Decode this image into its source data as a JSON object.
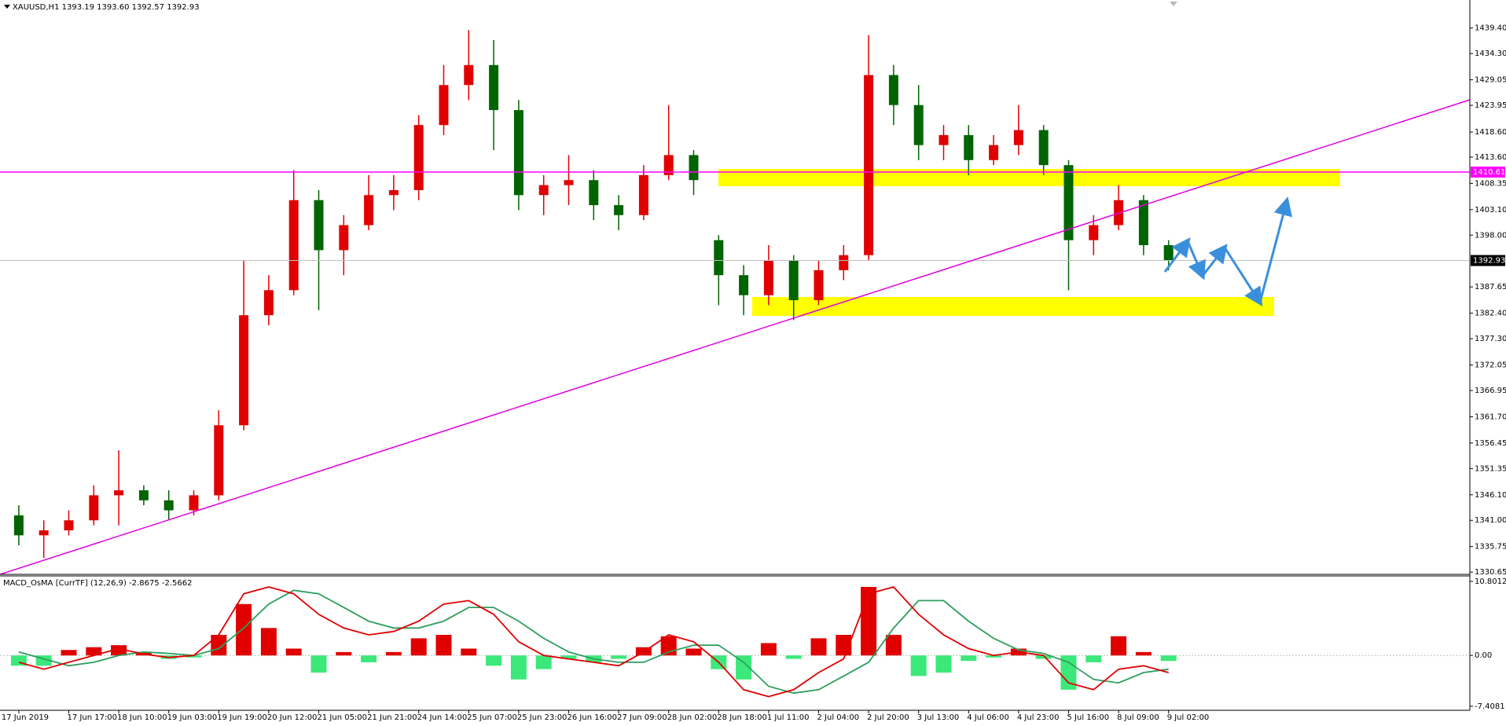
{
  "chart_data": [
    {
      "type": "candlestick",
      "title": "XAUUSD,H1  1393.19 1393.60 1392.57 1392.93",
      "categories": [
        "17 Jun 2019",
        null,
        "17 Jun 17:00",
        null,
        "18 Jun 10:00",
        null,
        "19 Jun 03:00",
        null,
        "19 Jun 19:00",
        null,
        "20 Jun 12:00",
        null,
        "21 Jun 05:00",
        null,
        "21 Jun 21:00",
        null,
        "24 Jun 14:00",
        null,
        "25 Jun 07:00",
        null,
        "25 Jun 23:00",
        null,
        "26 Jun 16:00",
        null,
        "27 Jun 09:00",
        null,
        "28 Jun 02:00",
        null,
        "28 Jun 18:00",
        null,
        "1 Jul 11:00",
        null,
        "2 Jul 04:00",
        null,
        "2 Jul 20:00",
        null,
        "3 Jul 13:00",
        null,
        "4 Jul 06:00",
        null,
        "4 Jul 23:00",
        null,
        "5 Jul 16:00",
        null,
        "8 Jul 09:00",
        null,
        "9 Jul 02:00"
      ],
      "open": [
        1342,
        1338,
        1339,
        1341,
        1346,
        1347,
        1345,
        1343,
        1346,
        1360,
        1382,
        1387,
        1405,
        1395,
        1400,
        1406,
        1407,
        1420,
        1428,
        1432,
        1423,
        1406,
        1408,
        1409,
        1404,
        1402,
        1410,
        1414,
        1397,
        1390,
        1386,
        1393,
        1385,
        1391,
        1394,
        1430,
        1424,
        1416,
        1418,
        1413,
        1416,
        1419,
        1412,
        1397,
        1400,
        1405,
        1396
      ],
      "high": [
        1344,
        1341,
        1343,
        1348,
        1355,
        1348,
        1347,
        1347,
        1363,
        1393,
        1390,
        1411,
        1407,
        1402,
        1410,
        1410,
        1422,
        1432,
        1439,
        1437,
        1425,
        1410,
        1414,
        1411,
        1406,
        1412,
        1424,
        1415,
        1398,
        1392,
        1396,
        1394,
        1393,
        1396,
        1438,
        1432,
        1428,
        1420,
        1420,
        1418,
        1424,
        1420,
        1413,
        1402,
        1408,
        1406,
        1397
      ],
      "low": [
        1336,
        1333.5,
        1338,
        1340,
        1340,
        1344,
        1341,
        1342,
        1345,
        1359,
        1380,
        1386,
        1383,
        1390,
        1399,
        1403,
        1405,
        1418,
        1425,
        1415,
        1403,
        1402,
        1404,
        1401,
        1399,
        1401,
        1409,
        1406,
        1384,
        1382,
        1384,
        1381,
        1384,
        1389,
        1393,
        1420,
        1413,
        1413,
        1410,
        1412,
        1414,
        1410,
        1387,
        1394,
        1399,
        1394,
        1391
      ],
      "close": [
        1338,
        1339,
        1341,
        1346,
        1347,
        1345,
        1343,
        1346,
        1360,
        1382,
        1387,
        1405,
        1395,
        1400,
        1406,
        1407,
        1420,
        1428,
        1432,
        1423,
        1406,
        1408,
        1409,
        1404,
        1402,
        1410,
        1414,
        1409,
        1390,
        1386,
        1393,
        1385,
        1391,
        1394,
        1430,
        1424,
        1416,
        1418,
        1413,
        1416,
        1419,
        1412,
        1397,
        1400,
        1405,
        1396,
        1392.93
      ],
      "up_color": "#e00000",
      "down_color": "#006400",
      "ylim": [
        1330.2,
        1445.0
      ],
      "yticks": [
        {
          "value": 1439.4,
          "label": "1439.40"
        },
        {
          "value": 1434.3,
          "label": "1434.30"
        },
        1429.05,
        1423.95,
        {
          "value": 1418.6,
          "label": "1418.60"
        },
        {
          "value": 1413.6,
          "label": "1413.60"
        },
        1408.35,
        {
          "value": 1403.1,
          "label": "1403.10"
        },
        {
          "value": 1398,
          "label": "1398.00"
        },
        1387.65,
        {
          "value": 1382.4,
          "label": "1382.40"
        },
        {
          "value": 1377.3,
          "label": "1377.30"
        },
        1372.05,
        1366.95,
        {
          "value": 1361.7,
          "label": "1361.70"
        },
        1356.45,
        1351.35,
        {
          "value": 1346.1,
          "label": "1346.10"
        },
        {
          "value": 1341,
          "label": "1341.00"
        },
        1335.75,
        1330.65
      ],
      "hlines": [
        {
          "value": 1410.61,
          "color": "#ff00ff"
        }
      ],
      "last_price": 1392.93
    },
    {
      "type": "macd",
      "title": "MACD_OsMA [CurrTF] (12,26,9) -2.8675 -2.5662",
      "histogram": [
        -1.5,
        -1.5,
        0.8,
        1.2,
        1.5,
        0.5,
        -0.5,
        -0.3,
        3,
        7.5,
        4,
        1,
        -2.5,
        0.5,
        -1,
        0.5,
        2.5,
        3,
        1,
        -1.5,
        -3.5,
        -2,
        -0.5,
        -1,
        -0.5,
        1.2,
        2.8,
        1,
        -2,
        -3.5,
        1.8,
        -0.5,
        2.5,
        3,
        10,
        3,
        -3,
        -2.5,
        -0.8,
        -0.3,
        1,
        -0.5,
        -5,
        -1,
        2.8,
        0.5,
        -0.8
      ],
      "macd_line": [
        -1,
        -2,
        -1,
        0,
        1,
        0.2,
        -0.3,
        0,
        3,
        9,
        10,
        9,
        6,
        4,
        3,
        3.5,
        5,
        7.5,
        8,
        6,
        2,
        0,
        -0.5,
        -1,
        -1.5,
        0.5,
        3,
        2,
        -1,
        -5,
        -6,
        -5,
        -2.5,
        -0.5,
        9,
        10,
        6,
        3,
        1,
        0,
        0.5,
        0,
        -4,
        -5,
        -2,
        -1.5,
        -2.5
      ],
      "signal_line": [
        0.5,
        -0.5,
        -1.5,
        -1,
        0,
        0.5,
        0.3,
        0,
        1,
        4,
        7.5,
        9.5,
        9,
        7,
        5,
        4,
        4,
        5,
        7,
        7,
        5,
        2.5,
        0.5,
        -0.5,
        -1,
        -1,
        0.5,
        1.5,
        1.5,
        -1,
        -4.5,
        -5.5,
        -5,
        -3,
        -1,
        4,
        8,
        8,
        5,
        2.5,
        0.8,
        0.3,
        -1,
        -3.5,
        -4,
        -2.5,
        -2
      ],
      "positive_color": "#e00000",
      "negative_color": "#3ce87a",
      "macd_color": "#e00000",
      "signal_color": "#2e9e5e",
      "ylim": [
        -8.0,
        11.6
      ],
      "yticks": [
        10.8012,
        {
          "value": 0,
          "label": "0.00"
        },
        -7.4081
      ],
      "zero_line": true
    }
  ]
}
